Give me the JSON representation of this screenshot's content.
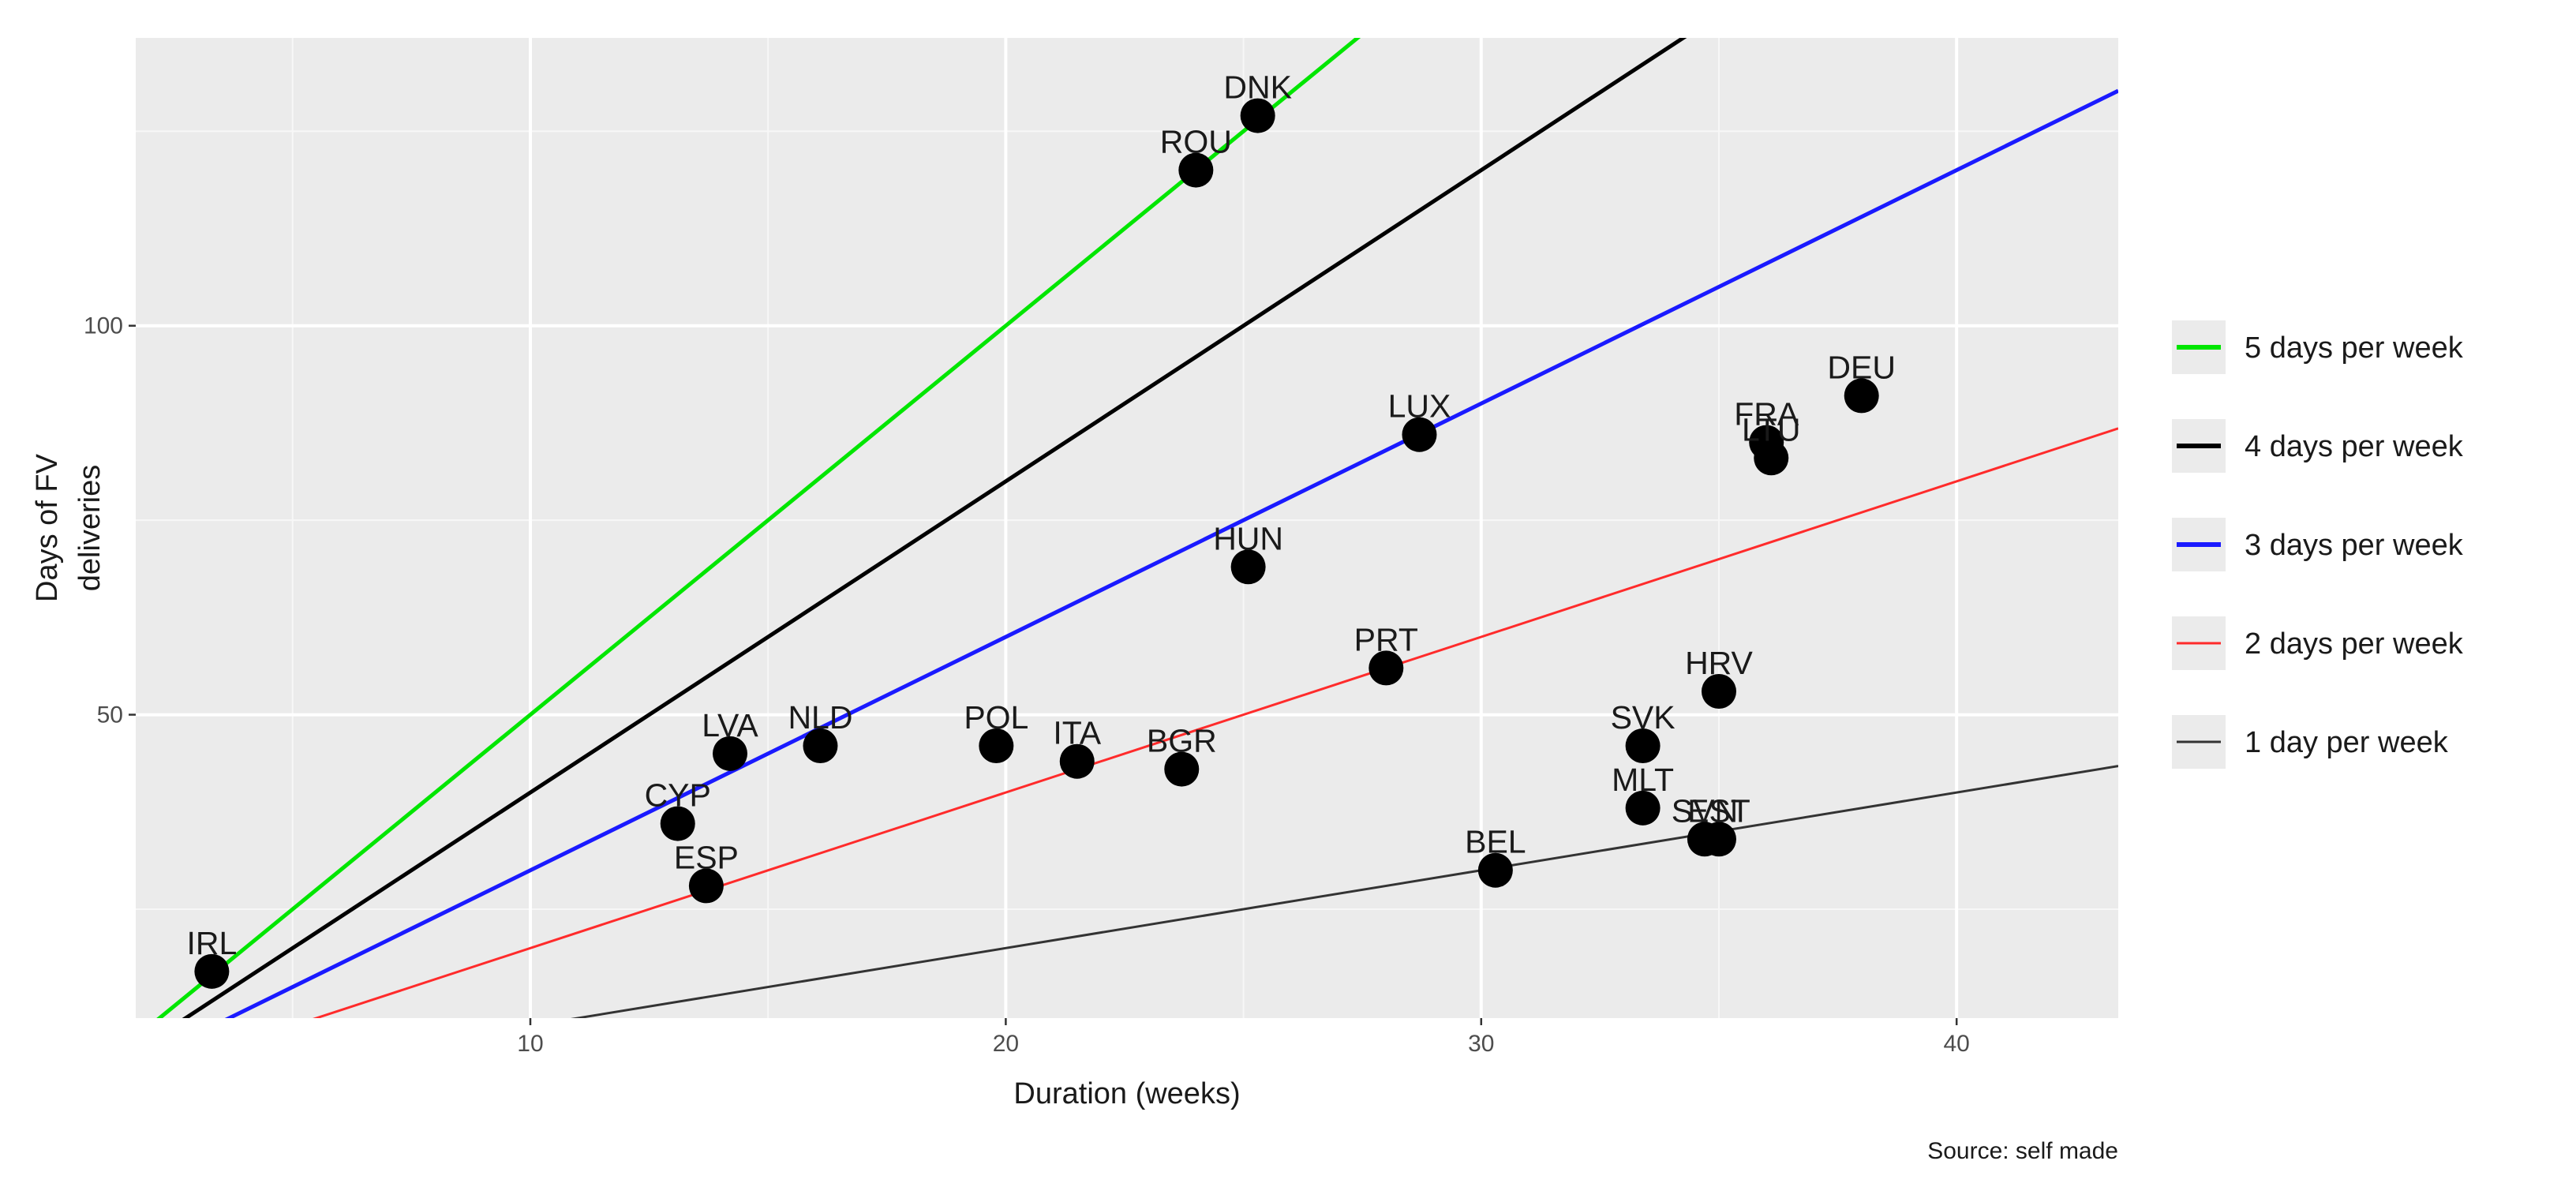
{
  "chart_data": {
    "type": "scatter",
    "title": "",
    "xlabel": "Duration (weeks)",
    "ylabel_lines": [
      "Days of FV",
      "deliveries"
    ],
    "caption": "Source: self made",
    "xlim": [
      1.7,
      43.4
    ],
    "ylim": [
      11,
      137
    ],
    "xticks": [
      10,
      20,
      30,
      40
    ],
    "yticks": [
      50,
      100
    ],
    "grid": true,
    "points": [
      {
        "label": "DNK",
        "x": 25.3,
        "y": 127
      },
      {
        "label": "ROU",
        "x": 24.0,
        "y": 120
      },
      {
        "label": "DEU",
        "x": 38.0,
        "y": 91
      },
      {
        "label": "FRA",
        "x": 36.0,
        "y": 85
      },
      {
        "label": "LTU",
        "x": 36.1,
        "y": 83
      },
      {
        "label": "LUX",
        "x": 28.7,
        "y": 86
      },
      {
        "label": "HUN",
        "x": 25.1,
        "y": 69
      },
      {
        "label": "PRT",
        "x": 28.0,
        "y": 56
      },
      {
        "label": "HRV",
        "x": 35.0,
        "y": 53
      },
      {
        "label": "SVK",
        "x": 33.4,
        "y": 46
      },
      {
        "label": "MLT",
        "x": 33.4,
        "y": 38
      },
      {
        "label": "SVN",
        "x": 34.7,
        "y": 34
      },
      {
        "label": "EST",
        "x": 35.0,
        "y": 34
      },
      {
        "label": "BEL",
        "x": 30.3,
        "y": 30
      },
      {
        "label": "LVA",
        "x": 14.2,
        "y": 45
      },
      {
        "label": "NLD",
        "x": 16.1,
        "y": 46
      },
      {
        "label": "POL",
        "x": 19.8,
        "y": 46
      },
      {
        "label": "ITA",
        "x": 21.5,
        "y": 44
      },
      {
        "label": "BGR",
        "x": 23.7,
        "y": 43
      },
      {
        "label": "CYP",
        "x": 13.1,
        "y": 36
      },
      {
        "label": "ESP",
        "x": 13.7,
        "y": 28
      },
      {
        "label": "IRL",
        "x": 3.3,
        "y": 17
      }
    ],
    "lines": [
      {
        "name": "5 days per week",
        "slope": 5,
        "color": "#00e600"
      },
      {
        "name": "4 days per week",
        "slope": 4,
        "color": "#000000"
      },
      {
        "name": "3 days per week",
        "slope": 3,
        "color": "#1a1aff"
      },
      {
        "name": "2 days per week",
        "slope": 2,
        "color": "#ff2b2b"
      },
      {
        "name": "1 day per week",
        "slope": 1,
        "color": "#333333"
      }
    ],
    "legend_position": "right"
  }
}
